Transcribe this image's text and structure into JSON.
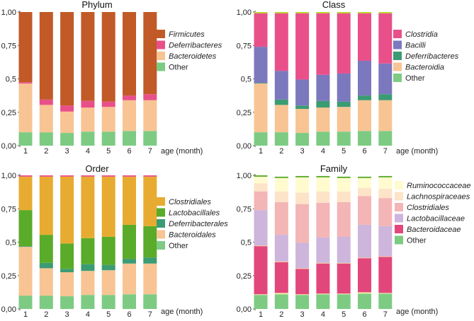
{
  "chart_data": [
    {
      "type": "bar",
      "stacked": true,
      "title": "Phylum",
      "xlabel": "age (month)",
      "ylabel": "",
      "ylim": [
        0,
        1
      ],
      "yticks": [
        "0,00",
        "0,25",
        "0,5",
        "0,75",
        "1,00"
      ],
      "categories": [
        "1",
        "2",
        "3",
        "4",
        "5",
        "6",
        "7"
      ],
      "legend_position": "right",
      "series": [
        {
          "name": "Other",
          "italic": false,
          "color": "#7dcb83",
          "values": [
            0.1,
            0.1,
            0.095,
            0.105,
            0.105,
            0.11,
            0.11
          ]
        },
        {
          "name": "Bacteroidetes",
          "italic": true,
          "color": "#f8c493",
          "values": [
            0.365,
            0.205,
            0.16,
            0.18,
            0.185,
            0.23,
            0.23
          ]
        },
        {
          "name": "Deferribacteres",
          "italic": true,
          "color": "#e9508a",
          "values": [
            0.01,
            0.04,
            0.045,
            0.05,
            0.04,
            0.035,
            0.045
          ]
        },
        {
          "name": "Firmicutes",
          "italic": true,
          "color": "#c15a27",
          "values": [
            0.525,
            0.655,
            0.7,
            0.665,
            0.67,
            0.625,
            0.615
          ]
        }
      ]
    },
    {
      "type": "bar",
      "stacked": true,
      "title": "Class",
      "xlabel": "age (month)",
      "ylabel": "",
      "ylim": [
        0,
        1
      ],
      "yticks": [
        "0,00",
        "0,25",
        "0,5",
        "0,75",
        "1,00"
      ],
      "categories": [
        "1",
        "2",
        "3",
        "4",
        "5",
        "6",
        "7"
      ],
      "legend_position": "right",
      "series": [
        {
          "name": "Other",
          "italic": false,
          "color": "#7dcb83",
          "values": [
            0.1,
            0.1,
            0.095,
            0.105,
            0.105,
            0.11,
            0.11
          ]
        },
        {
          "name": "Bacteroidia",
          "italic": true,
          "color": "#f8c493",
          "values": [
            0.365,
            0.205,
            0.18,
            0.18,
            0.185,
            0.23,
            0.23
          ]
        },
        {
          "name": "Deferribacteres",
          "italic": true,
          "color": "#3b9b73",
          "values": [
            0.005,
            0.04,
            0.025,
            0.05,
            0.04,
            0.035,
            0.045
          ]
        },
        {
          "name": "Bacilli",
          "italic": true,
          "color": "#7c78be",
          "values": [
            0.27,
            0.215,
            0.195,
            0.195,
            0.21,
            0.26,
            0.23
          ]
        },
        {
          "name": "Clostridia",
          "italic": true,
          "color": "#e9508a",
          "values": [
            0.25,
            0.43,
            0.495,
            0.46,
            0.45,
            0.355,
            0.375
          ]
        },
        {
          "name": "",
          "italic": false,
          "color": "#b8d42b",
          "values": [
            0.01,
            0.01,
            0.01,
            0.01,
            0.01,
            0.01,
            0.01
          ]
        }
      ]
    },
    {
      "type": "bar",
      "stacked": true,
      "title": "Order",
      "xlabel": "age (month)",
      "ylabel": "",
      "ylim": [
        0,
        1
      ],
      "yticks": [
        "0,00",
        "0,25",
        "0,5",
        "0,75",
        "1,00"
      ],
      "categories": [
        "1",
        "2",
        "3",
        "4",
        "5",
        "6",
        "7"
      ],
      "legend_position": "right",
      "series": [
        {
          "name": "Other",
          "italic": false,
          "color": "#7dcb83",
          "values": [
            0.1,
            0.1,
            0.095,
            0.105,
            0.105,
            0.11,
            0.11
          ]
        },
        {
          "name": "Bacteroidales",
          "italic": true,
          "color": "#f8c493",
          "values": [
            0.365,
            0.205,
            0.18,
            0.18,
            0.185,
            0.23,
            0.23
          ]
        },
        {
          "name": "Deferribacterales",
          "italic": true,
          "color": "#3b9b73",
          "values": [
            0.005,
            0.04,
            0.025,
            0.05,
            0.04,
            0.035,
            0.045
          ]
        },
        {
          "name": "Lactobacillales",
          "italic": true,
          "color": "#5aab29",
          "values": [
            0.27,
            0.21,
            0.19,
            0.195,
            0.21,
            0.255,
            0.235
          ]
        },
        {
          "name": "Clostridiales",
          "italic": true,
          "color": "#e8ab31",
          "values": [
            0.25,
            0.435,
            0.5,
            0.46,
            0.45,
            0.36,
            0.37
          ]
        },
        {
          "name": "",
          "italic": false,
          "color": "#e9508a",
          "values": [
            0.01,
            0.01,
            0.01,
            0.01,
            0.01,
            0.01,
            0.01
          ]
        }
      ]
    },
    {
      "type": "bar",
      "stacked": true,
      "title": "Family",
      "xlabel": "age (month)",
      "ylabel": "",
      "ylim": [
        0,
        1
      ],
      "yticks": [
        "0,00",
        "0,25",
        "0,5",
        "0,75",
        "1,00"
      ],
      "categories": [
        "1",
        "2",
        "3",
        "4",
        "5",
        "6",
        "7"
      ],
      "legend_position": "right",
      "series": [
        {
          "name": "Other",
          "italic": false,
          "color": "#7dcb83",
          "values": [
            0.105,
            0.11,
            0.105,
            0.11,
            0.11,
            0.115,
            0.115
          ]
        },
        {
          "name": "",
          "italic": false,
          "color": "#f2eea0",
          "values": [
            0.005,
            0.01,
            0.005,
            0.005,
            0.005,
            0.01,
            0.005
          ]
        },
        {
          "name": "Bacteroidaceae",
          "italic": true,
          "color": "#e2477c",
          "values": [
            0.36,
            0.23,
            0.19,
            0.225,
            0.225,
            0.255,
            0.27
          ]
        },
        {
          "name": "",
          "italic": false,
          "color": "#f8c493",
          "values": [
            0.005,
            0.005,
            0.005,
            0.005,
            0.005,
            0.005,
            0.005
          ]
        },
        {
          "name": "Lactobacillaceae",
          "italic": true,
          "color": "#cdb5dc",
          "values": [
            0.265,
            0.2,
            0.19,
            0.19,
            0.195,
            0.245,
            0.225
          ]
        },
        {
          "name": "Clostridiales",
          "italic": true,
          "color": "#f3b5b5",
          "values": [
            0.14,
            0.245,
            0.29,
            0.26,
            0.26,
            0.215,
            0.21
          ]
        },
        {
          "name": "Lachnospiraceaes",
          "italic": true,
          "color": "#fde3c7",
          "values": [
            0.06,
            0.08,
            0.085,
            0.085,
            0.08,
            0.06,
            0.07
          ]
        },
        {
          "name": "Ruminococcaceae",
          "italic": true,
          "color": "#fffbcf",
          "values": [
            0.05,
            0.1,
            0.115,
            0.105,
            0.1,
            0.075,
            0.085
          ]
        },
        {
          "name": "",
          "italic": false,
          "color": "#5aab29",
          "values": [
            0.01,
            0.01,
            0.01,
            0.01,
            0.01,
            0.01,
            0.01
          ]
        }
      ]
    }
  ]
}
